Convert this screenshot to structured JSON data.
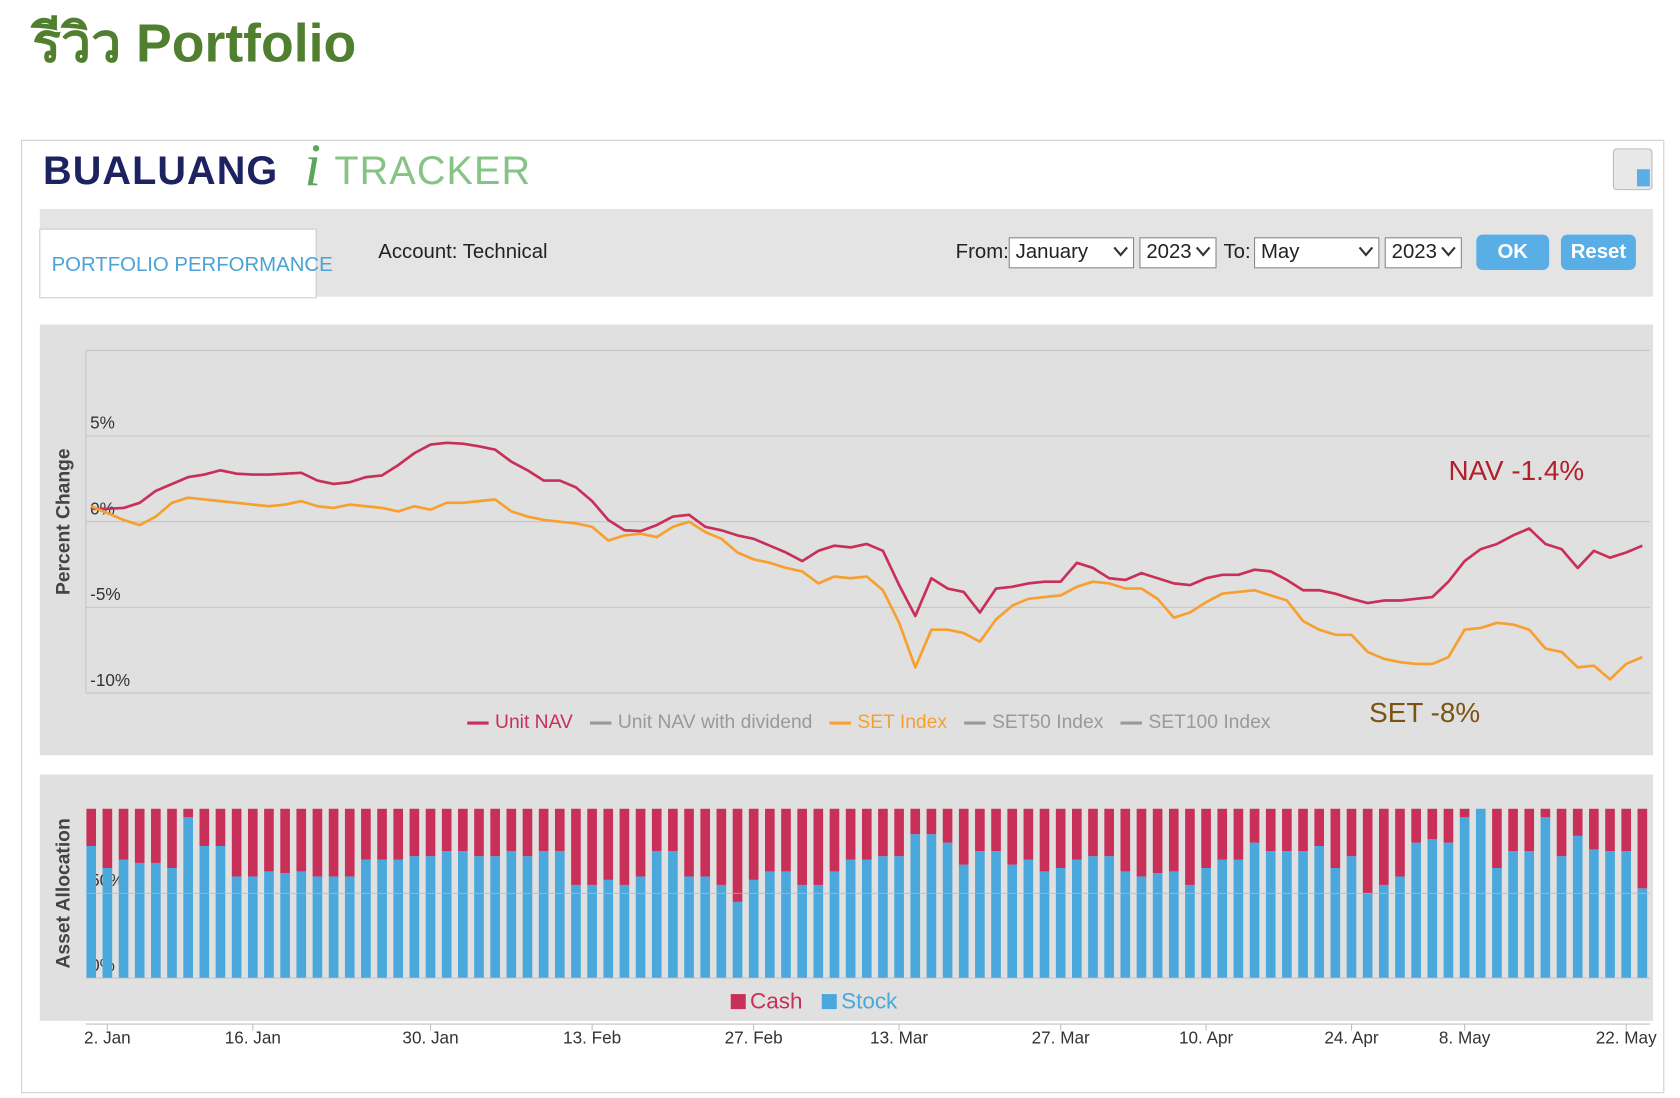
{
  "page_title": "รีวิว Portfolio",
  "header": {
    "logo_left": "BUALUANG",
    "logo_i": "i",
    "logo_right": "TRACKER"
  },
  "tab": "PORTFOLIO PERFORMANCE",
  "account": "Account: Technical",
  "controls": {
    "from_label": "From:",
    "from_month": "January",
    "from_year": "2023",
    "to_label": "To:",
    "to_month": "May",
    "to_year": "2023",
    "ok": "OK",
    "reset": "Reset"
  },
  "chart_data": [
    {
      "type": "line",
      "y_label": "Percent Change",
      "ylim": [
        -10,
        10
      ],
      "yticks": [
        {
          "value": -10,
          "label": "-10%"
        },
        {
          "value": -5,
          "label": "-5%"
        },
        {
          "value": 0,
          "label": "0%"
        },
        {
          "value": 5,
          "label": "5%"
        }
      ],
      "grid": true,
      "annotations": [
        {
          "text": "NAV -1.4%",
          "color": "#b3202a"
        },
        {
          "text": "SET -8%",
          "color": "#7a5410"
        }
      ],
      "series": [
        {
          "name": "Unit NAV",
          "color": "#c8305a",
          "values": [
            0.75,
            0.75,
            0.8,
            1.1,
            1.8,
            2.2,
            2.6,
            2.75,
            3.0,
            2.8,
            2.75,
            2.75,
            2.8,
            2.85,
            2.4,
            2.2,
            2.3,
            2.6,
            2.7,
            3.3,
            4.0,
            4.5,
            4.6,
            4.55,
            4.4,
            4.2,
            3.5,
            3.0,
            2.4,
            2.4,
            2.0,
            1.2,
            0.1,
            -0.5,
            -0.55,
            -0.2,
            0.3,
            0.4,
            -0.3,
            -0.5,
            -0.8,
            -1.0,
            -1.4,
            -1.8,
            -2.3,
            -1.7,
            -1.4,
            -1.5,
            -1.3,
            -1.7,
            -3.7,
            -5.5,
            -3.3,
            -3.9,
            -4.1,
            -5.3,
            -3.9,
            -3.8,
            -3.6,
            -3.5,
            -3.5,
            -2.4,
            -2.7,
            -3.3,
            -3.4,
            -3.0,
            -3.3,
            -3.6,
            -3.7,
            -3.3,
            -3.1,
            -3.1,
            -2.8,
            -2.9,
            -3.4,
            -4.0,
            -4.0,
            -4.2,
            -4.5,
            -4.75,
            -4.6,
            -4.6,
            -4.5,
            -4.4,
            -3.5,
            -2.3,
            -1.6,
            -1.3,
            -0.8,
            -0.4,
            -1.3,
            -1.6,
            -2.7,
            -1.7,
            -2.1,
            -1.8,
            -1.4
          ]
        },
        {
          "name": "Unit NAV with dividend",
          "color": "#999999",
          "visible": false
        },
        {
          "name": "SET Index",
          "color": "#f7a030",
          "values": [
            0.9,
            0.5,
            0.1,
            -0.2,
            0.3,
            1.1,
            1.4,
            1.3,
            1.2,
            1.1,
            1.0,
            0.9,
            1.0,
            1.2,
            0.9,
            0.8,
            1.0,
            0.9,
            0.8,
            0.6,
            0.9,
            0.7,
            1.1,
            1.1,
            1.2,
            1.3,
            0.6,
            0.3,
            0.1,
            0.0,
            -0.1,
            -0.3,
            -1.1,
            -0.8,
            -0.7,
            -0.9,
            -0.3,
            0.0,
            -0.6,
            -1.0,
            -1.8,
            -2.2,
            -2.4,
            -2.7,
            -2.9,
            -3.6,
            -3.2,
            -3.3,
            -3.2,
            -4.0,
            -5.9,
            -8.5,
            -6.3,
            -6.3,
            -6.5,
            -7.0,
            -5.7,
            -4.9,
            -4.5,
            -4.4,
            -4.3,
            -3.8,
            -3.5,
            -3.6,
            -3.9,
            -3.9,
            -4.5,
            -5.6,
            -5.3,
            -4.7,
            -4.2,
            -4.1,
            -4.0,
            -4.3,
            -4.6,
            -5.8,
            -6.3,
            -6.6,
            -6.6,
            -7.6,
            -8.0,
            -8.2,
            -8.3,
            -8.3,
            -7.9,
            -6.3,
            -6.2,
            -5.9,
            -6.0,
            -6.3,
            -7.4,
            -7.6,
            -8.5,
            -8.4,
            -9.2,
            -8.3,
            -7.9
          ]
        },
        {
          "name": "SET50 Index",
          "color": "#999999",
          "visible": false
        },
        {
          "name": "SET100 Index",
          "color": "#999999",
          "visible": false
        }
      ]
    },
    {
      "type": "stacked_bar",
      "y_label": "Asset Allocation",
      "ylim": [
        0,
        100
      ],
      "yticks": [
        {
          "value": 0,
          "label": "0%"
        },
        {
          "value": 50,
          "label": "50%"
        }
      ],
      "categories": [
        null,
        "2. Jan",
        null,
        null,
        null,
        null,
        null,
        null,
        null,
        null,
        "16. Jan",
        null,
        null,
        null,
        null,
        null,
        null,
        null,
        null,
        null,
        null,
        "30. Jan",
        null,
        null,
        null,
        null,
        null,
        null,
        null,
        null,
        null,
        "13. Feb",
        null,
        null,
        null,
        null,
        null,
        null,
        null,
        null,
        null,
        "27. Feb",
        null,
        null,
        null,
        null,
        null,
        null,
        null,
        null,
        "13. Mar",
        null,
        null,
        null,
        null,
        null,
        null,
        null,
        null,
        null,
        "27. Mar",
        null,
        null,
        null,
        null,
        null,
        null,
        null,
        null,
        "10. Apr",
        null,
        null,
        null,
        null,
        null,
        null,
        null,
        null,
        "24. Apr",
        null,
        null,
        null,
        null,
        null,
        null,
        "8. May",
        null,
        null,
        null,
        null,
        null,
        null,
        null,
        null,
        null,
        "22. May",
        null
      ],
      "series": [
        {
          "name": "Stock",
          "color": "#4aa8dc",
          "values": [
            78,
            65,
            70,
            68,
            68,
            65,
            95,
            78,
            78,
            60,
            60,
            63,
            62,
            63,
            60,
            60,
            60,
            70,
            70,
            70,
            72,
            72,
            75,
            75,
            72,
            72,
            75,
            72,
            75,
            75,
            55,
            55,
            58,
            55,
            60,
            75,
            75,
            60,
            60,
            55,
            45,
            58,
            63,
            63,
            55,
            55,
            63,
            70,
            70,
            72,
            72,
            85,
            85,
            80,
            67,
            75,
            75,
            67,
            70,
            63,
            65,
            70,
            72,
            72,
            63,
            60,
            62,
            63,
            55,
            65,
            70,
            70,
            80,
            75,
            75,
            75,
            78,
            65,
            72,
            50,
            55,
            60,
            80,
            82,
            80,
            95,
            100,
            65,
            75,
            75,
            95,
            72,
            84,
            76,
            75,
            75,
            53
          ]
        },
        {
          "name": "Cash",
          "color": "#c8305a",
          "values": [
            22,
            35,
            30,
            32,
            32,
            35,
            5,
            22,
            22,
            40,
            40,
            37,
            38,
            37,
            40,
            40,
            40,
            30,
            30,
            30,
            28,
            28,
            25,
            25,
            28,
            28,
            25,
            28,
            25,
            25,
            45,
            45,
            42,
            45,
            40,
            25,
            25,
            40,
            40,
            45,
            55,
            42,
            37,
            37,
            45,
            45,
            37,
            30,
            30,
            28,
            28,
            15,
            15,
            20,
            33,
            25,
            25,
            33,
            30,
            37,
            35,
            30,
            28,
            28,
            37,
            40,
            38,
            37,
            45,
            35,
            30,
            30,
            20,
            25,
            25,
            25,
            22,
            35,
            28,
            50,
            45,
            40,
            20,
            18,
            20,
            5,
            0,
            35,
            25,
            25,
            5,
            28,
            16,
            24,
            25,
            25,
            47
          ]
        }
      ]
    }
  ]
}
